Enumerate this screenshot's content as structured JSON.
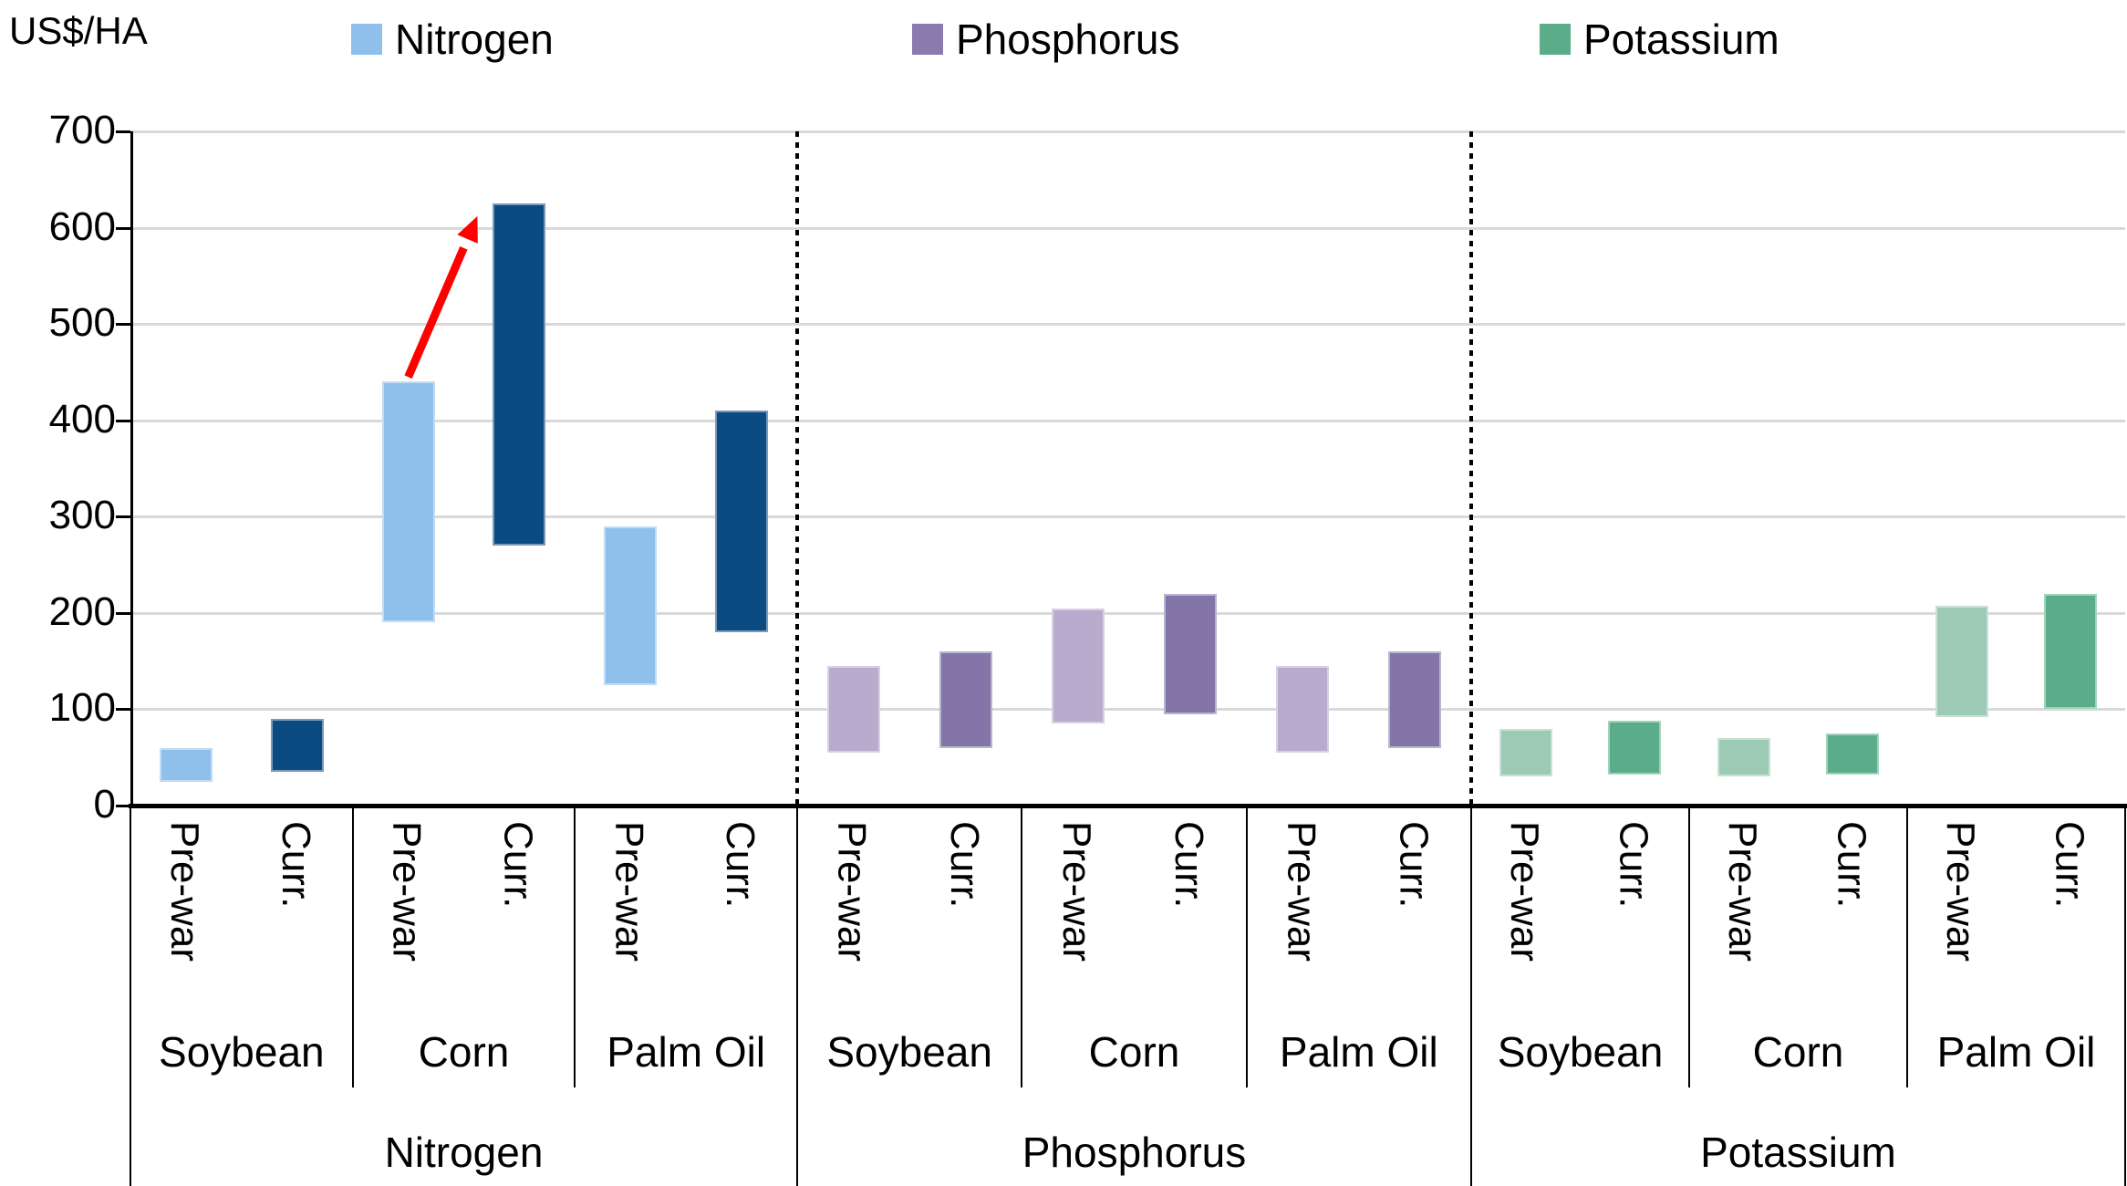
{
  "header": {
    "unit_label": "US$/HA"
  },
  "legend": {
    "items": [
      {
        "label": "Nitrogen",
        "color": "#8EC0EB"
      },
      {
        "label": "Phosphorus",
        "color": "#8A7BAF"
      },
      {
        "label": "Potassium",
        "color": "#5AAD88"
      }
    ]
  },
  "chart_data": {
    "type": "bar",
    "subtype": "floating-range-bars",
    "title": "",
    "ylabel": "US$/HA",
    "xlabel": "",
    "ylim": [
      0,
      700
    ],
    "yticks": [
      0,
      100,
      200,
      300,
      400,
      500,
      600,
      700
    ],
    "grid": true,
    "gridline_color": "#D9D9D9",
    "panel_separator_style": "dotted",
    "bar_period_labels": [
      "Pre-war",
      "Curr."
    ],
    "panels": [
      {
        "nutrient": "Nitrogen",
        "colors": {
          "pre_war": "#8EC0EB",
          "curr": "#0C4A82"
        },
        "crops": [
          {
            "crop": "Soybean",
            "bars": [
              {
                "label": "Pre-war",
                "low": 25,
                "high": 60
              },
              {
                "label": "Curr.",
                "low": 35,
                "high": 90
              }
            ]
          },
          {
            "crop": "Corn",
            "bars": [
              {
                "label": "Pre-war",
                "low": 190,
                "high": 440
              },
              {
                "label": "Curr.",
                "low": 270,
                "high": 625
              }
            ]
          },
          {
            "crop": "Palm Oil",
            "bars": [
              {
                "label": "Pre-war",
                "low": 125,
                "high": 290
              },
              {
                "label": "Curr.",
                "low": 180,
                "high": 410
              }
            ]
          }
        ]
      },
      {
        "nutrient": "Phosphorus",
        "colors": {
          "pre_war": "#B9ABCD",
          "curr": "#8475A8"
        },
        "crops": [
          {
            "crop": "Soybean",
            "bars": [
              {
                "label": "Pre-war",
                "low": 55,
                "high": 145
              },
              {
                "label": "Curr.",
                "low": 60,
                "high": 160
              }
            ]
          },
          {
            "crop": "Corn",
            "bars": [
              {
                "label": "Pre-war",
                "low": 85,
                "high": 205
              },
              {
                "label": "Curr.",
                "low": 95,
                "high": 220
              }
            ]
          },
          {
            "crop": "Palm Oil",
            "bars": [
              {
                "label": "Pre-war",
                "low": 55,
                "high": 145
              },
              {
                "label": "Curr.",
                "low": 60,
                "high": 160
              }
            ]
          }
        ]
      },
      {
        "nutrient": "Potassium",
        "colors": {
          "pre_war": "#9CCAB4",
          "curr": "#5AAD88"
        },
        "crops": [
          {
            "crop": "Soybean",
            "bars": [
              {
                "label": "Pre-war",
                "low": 30,
                "high": 80
              },
              {
                "label": "Curr.",
                "low": 32,
                "high": 88
              }
            ]
          },
          {
            "crop": "Corn",
            "bars": [
              {
                "label": "Pre-war",
                "low": 30,
                "high": 70
              },
              {
                "label": "Curr.",
                "low": 32,
                "high": 75
              }
            ]
          },
          {
            "crop": "Palm Oil",
            "bars": [
              {
                "label": "Pre-war",
                "low": 92,
                "high": 207
              },
              {
                "label": "Curr.",
                "low": 100,
                "high": 220
              }
            ]
          }
        ]
      }
    ],
    "annotation_arrow": {
      "color": "#FF0000",
      "from": {
        "nutrient": "Nitrogen",
        "crop": "Corn",
        "bar": "Pre-war",
        "value": 445
      },
      "to": {
        "nutrient": "Nitrogen",
        "crop": "Corn",
        "bar": "Curr.",
        "value": 612
      },
      "meaning": "increase from pre-war to current nitrogen cost for corn"
    }
  }
}
